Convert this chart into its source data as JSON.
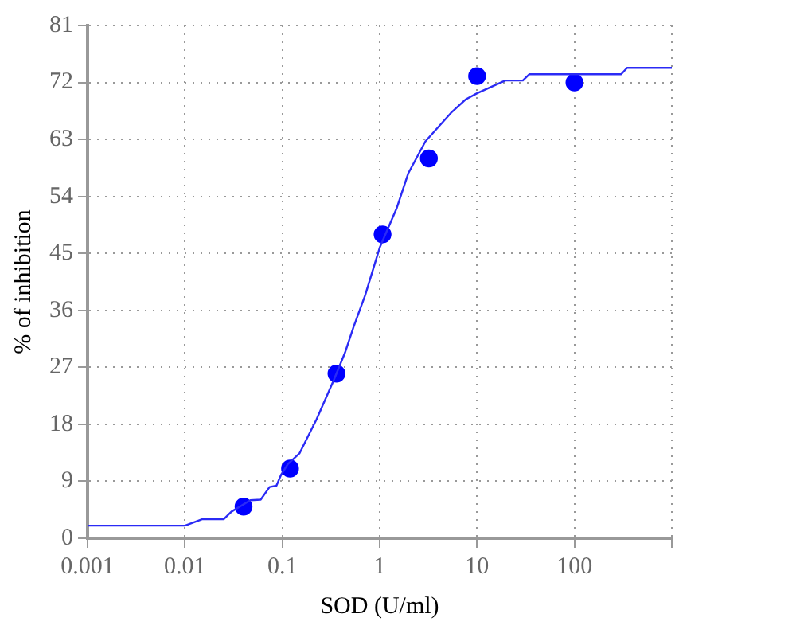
{
  "chart_data": {
    "type": "line",
    "xlabel": "SOD (U/ml)",
    "ylabel": "% of inhibition",
    "log": "x",
    "grid": true,
    "legend": false,
    "xlim": [
      0.001,
      1000
    ],
    "xticks": [
      0.001,
      0.01,
      0.1,
      1,
      10,
      100,
      {
        "value": 1000,
        "label": null
      }
    ],
    "ylim": [
      0,
      81
    ],
    "yticks": [
      0,
      9,
      18,
      27,
      36,
      45,
      54,
      63,
      72,
      81
    ],
    "series": [
      {
        "color": "#2b2bf5",
        "marker": "none",
        "line_style": "solid",
        "x": [
          0.001,
          0.01,
          0.015,
          0.025,
          0.03,
          0.047,
          0.06,
          0.074,
          0.087,
          0.097,
          0.114,
          0.15,
          0.225,
          0.34,
          0.44,
          0.54,
          0.71,
          1.0,
          1.5,
          1.96,
          2.95,
          5.4,
          7.6,
          10,
          19.5,
          29.5,
          34.5,
          302,
          347,
          1000
        ],
        "values": [
          2,
          2,
          3,
          3,
          4.2,
          6,
          6.1,
          8.1,
          8.3,
          10,
          11.7,
          13.4,
          18.8,
          25.1,
          29.3,
          33.4,
          38.4,
          45.9,
          52.2,
          57.6,
          62.7,
          67.2,
          69.3,
          70.3,
          72.3,
          72.3,
          73.3,
          73.3,
          74.3,
          74.3
        ]
      },
      {
        "type": "scatter",
        "color": "#0000ff",
        "marker": "circle",
        "x": [
          0.04,
          0.12,
          0.36,
          1.07,
          3.2,
          10,
          100
        ],
        "values": [
          5,
          11,
          26,
          48,
          60,
          73,
          72
        ]
      }
    ]
  }
}
